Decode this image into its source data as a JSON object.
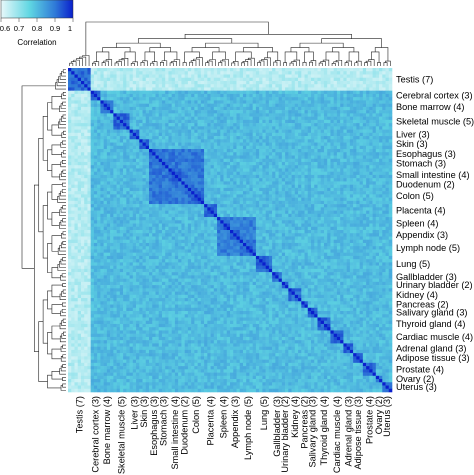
{
  "chart_data": {
    "type": "heatmap",
    "colorbar": {
      "label": "Correlation",
      "ticks": [
        "0.6",
        "0.7",
        "0.8",
        "0.9",
        "1"
      ],
      "range": [
        0.6,
        1.0
      ],
      "colors": [
        "#e8f8fa",
        "#5fd6e2",
        "#2f7ad8",
        "#0a1fcc"
      ]
    },
    "tissues": [
      {
        "label": "Testis (7)",
        "n": 7
      },
      {
        "label": "Cerebral cortex (3)",
        "n": 3
      },
      {
        "label": "Bone marrow (4)",
        "n": 4
      },
      {
        "label": "Skeletal muscle (5)",
        "n": 5
      },
      {
        "label": "Liver (3)",
        "n": 3
      },
      {
        "label": "Skin (3)",
        "n": 3
      },
      {
        "label": "Esophagus (3)",
        "n": 3
      },
      {
        "label": "Stomach (3)",
        "n": 3
      },
      {
        "label": "Small intestine (4)",
        "n": 4
      },
      {
        "label": "Duodenum (2)",
        "n": 2
      },
      {
        "label": "Colon (5)",
        "n": 5
      },
      {
        "label": "Placenta (4)",
        "n": 4
      },
      {
        "label": "Spleen (4)",
        "n": 4
      },
      {
        "label": "Appendix (3)",
        "n": 3
      },
      {
        "label": "Lymph node (5)",
        "n": 5
      },
      {
        "label": "Lung (5)",
        "n": 5
      },
      {
        "label": "Gallbladder (3)",
        "n": 3
      },
      {
        "label": "Urinary bladder (2)",
        "n": 2
      },
      {
        "label": "Kidney (4)",
        "n": 4
      },
      {
        "label": "Pancreas (2)",
        "n": 2
      },
      {
        "label": "Salivary gland (3)",
        "n": 3
      },
      {
        "label": "Thyroid gland (4)",
        "n": 4
      },
      {
        "label": "Cardiac muscle (4)",
        "n": 4
      },
      {
        "label": "Adrenal gland (3)",
        "n": 3
      },
      {
        "label": "Adipose tissue (3)",
        "n": 3
      },
      {
        "label": "Prostate (4)",
        "n": 4
      },
      {
        "label": "Ovary (2)",
        "n": 2
      },
      {
        "label": "Uterus (3)",
        "n": 3
      }
    ],
    "block_correlations": {
      "diagonal": 1.0,
      "within_tissue": 0.92,
      "between_tissue_default": 0.8,
      "testis_vs_other": 0.66,
      "gastrointestinal_group": [
        "Esophagus (3)",
        "Stomach (3)",
        "Small intestine (4)",
        "Duodenum (2)",
        "Colon (5)"
      ],
      "gastrointestinal_within": 0.9,
      "lymphoid_group": [
        "Spleen (4)",
        "Appendix (3)",
        "Lymph node (5)"
      ],
      "lymphoid_within": 0.89
    }
  }
}
